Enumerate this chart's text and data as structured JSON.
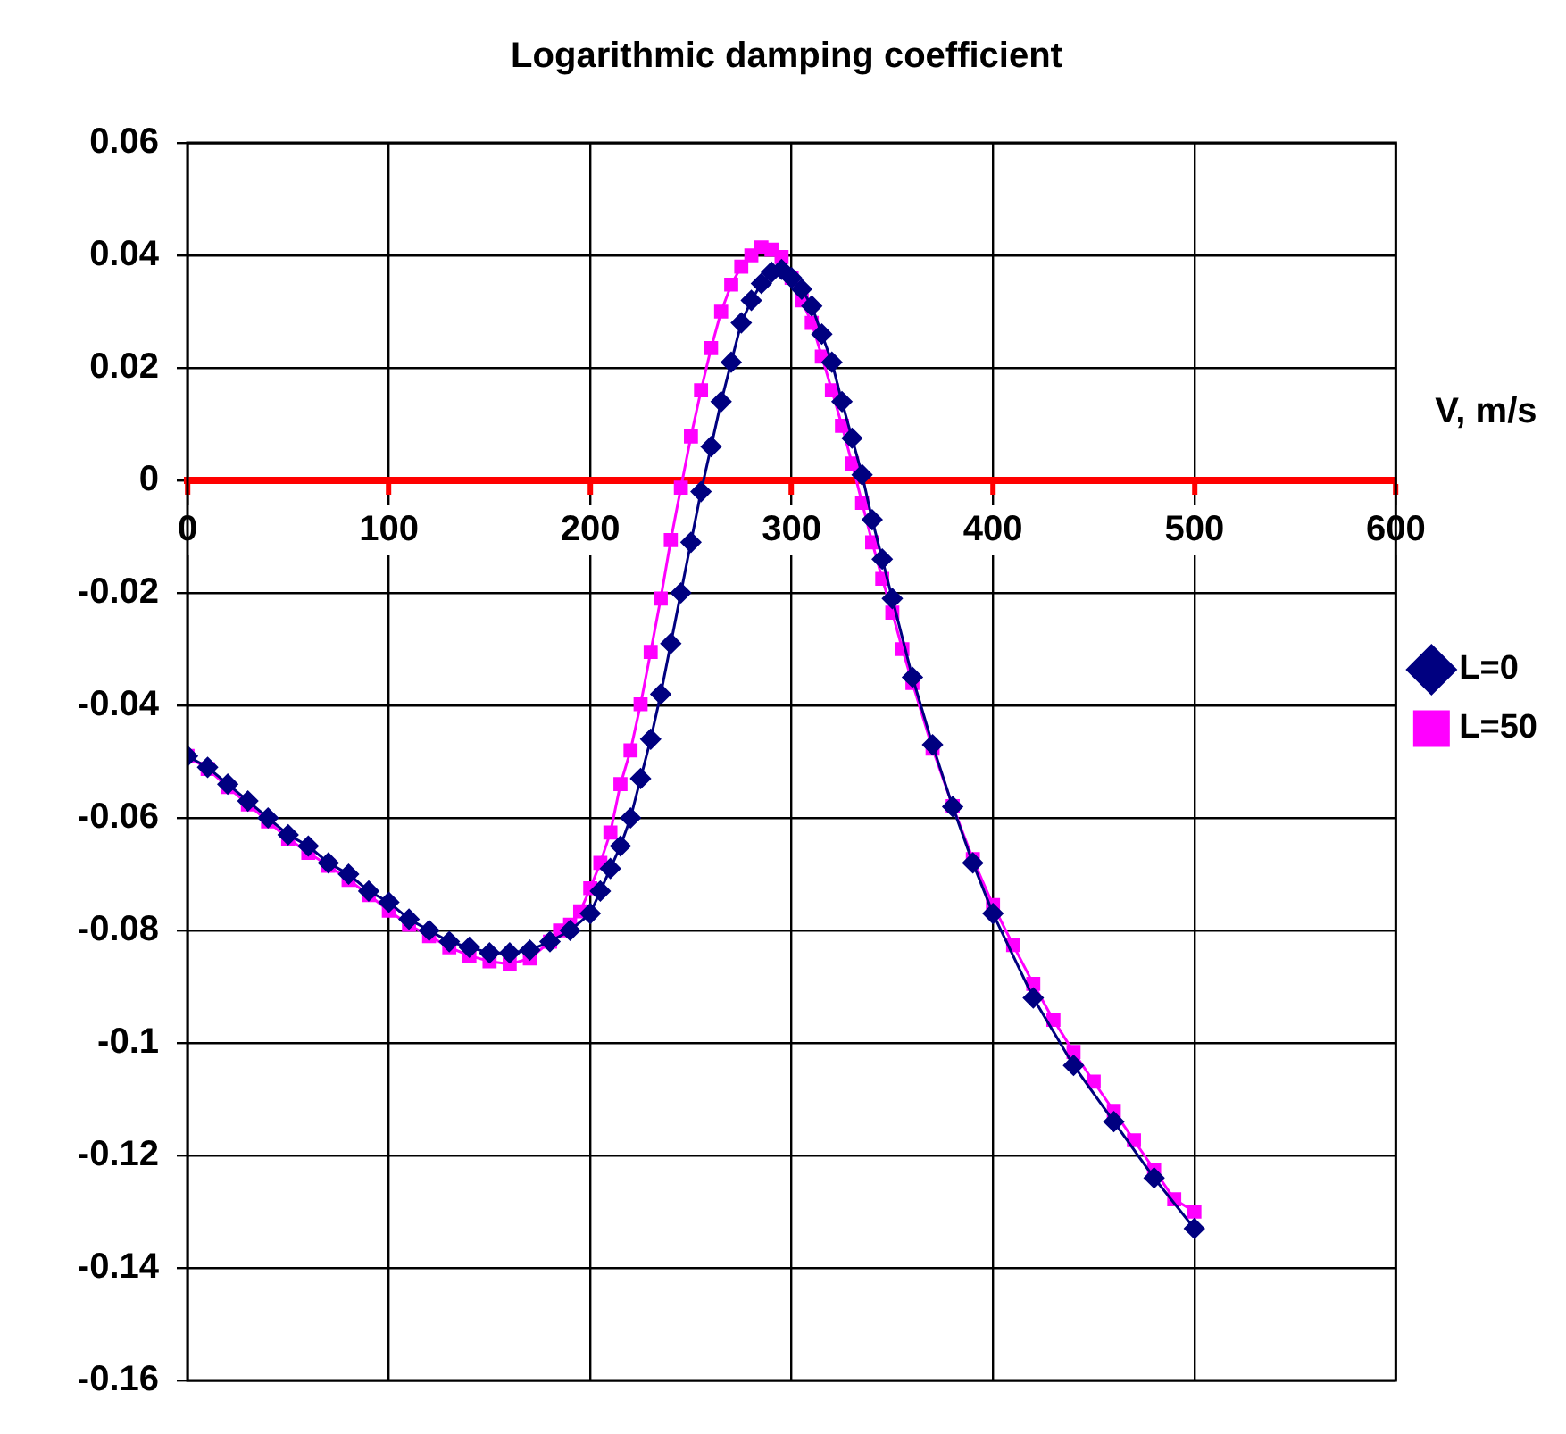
{
  "chart_data": {
    "type": "line",
    "title": "Logarithmic damping coefficient",
    "xlabel": "V, m/s",
    "xlim": [
      0,
      600
    ],
    "xticks": [
      0,
      100,
      200,
      300,
      400,
      500,
      600
    ],
    "ylim": [
      -0.16,
      0.06
    ],
    "yticks": [
      0.06,
      0.04,
      0.02,
      0,
      -0.02,
      -0.04,
      -0.06,
      -0.08,
      -0.1,
      -0.12,
      -0.14,
      -0.16
    ],
    "grid": true,
    "legend": "right",
    "series": [
      {
        "name": "L=0",
        "color": "#000080",
        "marker": "diamond",
        "x": [
          0,
          10,
          20,
          30,
          40,
          50,
          60,
          70,
          80,
          90,
          100,
          110,
          120,
          130,
          140,
          150,
          160,
          170,
          180,
          190,
          200,
          205,
          210,
          215,
          220,
          225,
          230,
          235,
          240,
          245,
          250,
          255,
          260,
          265,
          270,
          275,
          280,
          285,
          290,
          295,
          300,
          305,
          310,
          315,
          320,
          325,
          330,
          335,
          340,
          345,
          350,
          360,
          370,
          380,
          390,
          400,
          420,
          440,
          460,
          480,
          500
        ],
        "values": [
          -0.049,
          -0.051,
          -0.054,
          -0.057,
          -0.06,
          -0.063,
          -0.065,
          -0.068,
          -0.07,
          -0.073,
          -0.075,
          -0.078,
          -0.08,
          -0.082,
          -0.083,
          -0.084,
          -0.084,
          -0.0835,
          -0.082,
          -0.08,
          -0.077,
          -0.073,
          -0.069,
          -0.065,
          -0.06,
          -0.053,
          -0.046,
          -0.038,
          -0.029,
          -0.02,
          -0.011,
          -0.002,
          0.006,
          0.014,
          0.021,
          0.028,
          0.032,
          0.035,
          0.037,
          0.0375,
          0.036,
          0.034,
          0.031,
          0.026,
          0.021,
          0.014,
          0.0075,
          0.001,
          -0.007,
          -0.014,
          -0.021,
          -0.035,
          -0.047,
          -0.058,
          -0.068,
          -0.077,
          -0.092,
          -0.104,
          -0.114,
          -0.124,
          -0.133
        ]
      },
      {
        "name": "L=50",
        "color": "#ff00ff",
        "marker": "square",
        "x": [
          0,
          10,
          20,
          30,
          40,
          50,
          60,
          70,
          80,
          90,
          100,
          110,
          120,
          130,
          140,
          150,
          160,
          170,
          180,
          185,
          190,
          195,
          200,
          205,
          210,
          215,
          220,
          225,
          230,
          235,
          240,
          245,
          250,
          255,
          260,
          265,
          270,
          275,
          280,
          285,
          290,
          295,
          300,
          305,
          310,
          315,
          320,
          325,
          330,
          335,
          340,
          345,
          350,
          355,
          360,
          370,
          380,
          390,
          400,
          410,
          420,
          430,
          440,
          450,
          460,
          470,
          480,
          490,
          500
        ],
        "values": [
          -0.049,
          -0.0513,
          -0.0545,
          -0.0576,
          -0.0606,
          -0.0637,
          -0.0662,
          -0.0685,
          -0.071,
          -0.0737,
          -0.0765,
          -0.079,
          -0.081,
          -0.083,
          -0.0845,
          -0.0855,
          -0.086,
          -0.085,
          -0.082,
          -0.08,
          -0.079,
          -0.0766,
          -0.0725,
          -0.068,
          -0.0626,
          -0.054,
          -0.048,
          -0.0398,
          -0.0305,
          -0.021,
          -0.0106,
          -0.0013,
          0.0078,
          0.016,
          0.0235,
          0.03,
          0.0348,
          0.038,
          0.04,
          0.0414,
          0.041,
          0.0397,
          0.036,
          0.032,
          0.028,
          0.022,
          0.016,
          0.0097,
          0.003,
          -0.004,
          -0.011,
          -0.0175,
          -0.0235,
          -0.03,
          -0.036,
          -0.0477,
          -0.0579,
          -0.0673,
          -0.0755,
          -0.0826,
          -0.0895,
          -0.0959,
          -0.1016,
          -0.1069,
          -0.1121,
          -0.1173,
          -0.1225,
          -0.1278,
          -0.13
        ]
      }
    ]
  }
}
